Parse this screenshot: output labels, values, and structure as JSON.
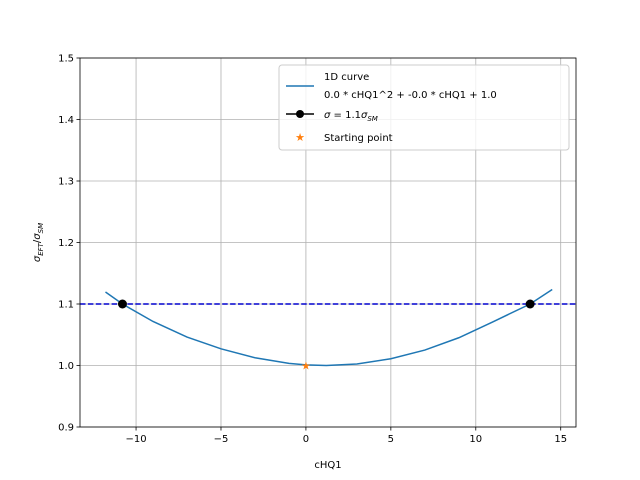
{
  "chart_data": {
    "type": "line",
    "title": "",
    "xlabel": "cHQ1",
    "ylabel": "σ_EFT/σ_SM",
    "xlim": [
      -13.3,
      15.9
    ],
    "ylim": [
      0.9,
      1.5
    ],
    "xticks": [
      -10,
      -5,
      0,
      5,
      10,
      15
    ],
    "xtick_labels": [
      "−10",
      "−5",
      "0",
      "5",
      "10",
      "15"
    ],
    "yticks": [
      0.9,
      1.0,
      1.1,
      1.2,
      1.3,
      1.4,
      1.5
    ],
    "ytick_labels": [
      "0.9",
      "1.0",
      "1.1",
      "1.2",
      "1.3",
      "1.4",
      "1.5"
    ],
    "grid": true,
    "legend_position": "top-right",
    "series": [
      {
        "name": "1D curve",
        "name_line2": "0.0 * cHQ1^2 + -0.0 * cHQ1 + 1.0",
        "kind": "line",
        "color": "#1f77b4",
        "x": [
          -11.8,
          -10.8,
          -9.0,
          -7.0,
          -5.0,
          -3.0,
          -1.0,
          0.0,
          1.2,
          3.0,
          5.0,
          7.0,
          9.0,
          11.0,
          13.2,
          14.5
        ],
        "y": [
          1.1195,
          1.1,
          1.0716,
          1.0462,
          1.0271,
          1.0126,
          1.0035,
          1.001,
          1.0,
          1.0024,
          1.011,
          1.0251,
          1.0451,
          1.0709,
          1.1,
          1.1235
        ]
      },
      {
        "name": "σ = 1.1σ_SM",
        "kind": "hline-with-markers",
        "color": "#0000cd",
        "marker_color": "#000000",
        "y": 1.1,
        "marker_x": [
          -10.8,
          13.2
        ]
      },
      {
        "name": "Starting point",
        "kind": "star",
        "color": "#ff7f0e",
        "x": [
          0.0
        ],
        "y": [
          1.0
        ]
      }
    ]
  }
}
